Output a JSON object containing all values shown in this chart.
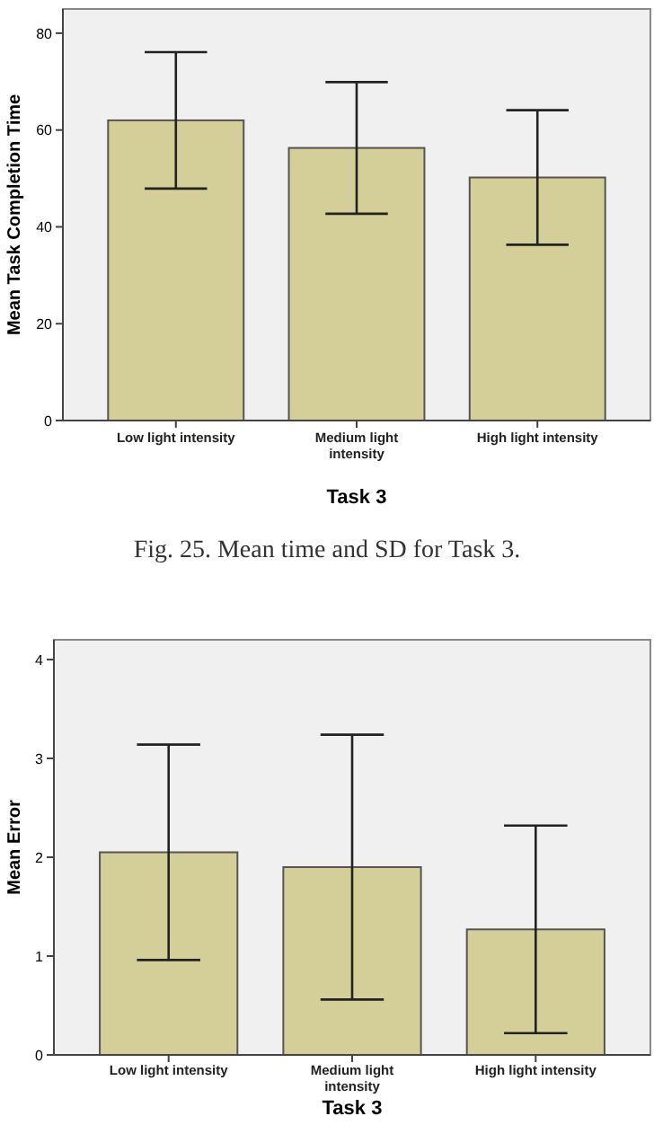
{
  "chart_data": [
    {
      "type": "bar",
      "categories": [
        "Low light intensity",
        "Medium light intensity",
        "High light intensity"
      ],
      "values": [
        62,
        56.3,
        50.2
      ],
      "errors": [
        14.1,
        13.6,
        13.9
      ],
      "color": "#d4cf98",
      "ylim": [
        0,
        85
      ],
      "yticks": [
        0,
        20,
        40,
        60,
        80
      ],
      "ylabel": "Mean Task Completion Time",
      "xlabel": "Task 3",
      "annotations": [
        "Fig. 25. Mean time and SD for Task 3."
      ]
    },
    {
      "type": "bar",
      "categories": [
        "Low light intensity",
        "Medium light intensity",
        "High light intensity"
      ],
      "values": [
        2.05,
        1.9,
        1.27
      ],
      "errors": [
        1.09,
        1.34,
        1.05
      ],
      "color": "#d4cf98",
      "ylim": [
        0,
        4.2
      ],
      "yticks": [
        0,
        1,
        2,
        3,
        4
      ],
      "ylabel": "Mean Error",
      "xlabel": "Task 3"
    }
  ]
}
